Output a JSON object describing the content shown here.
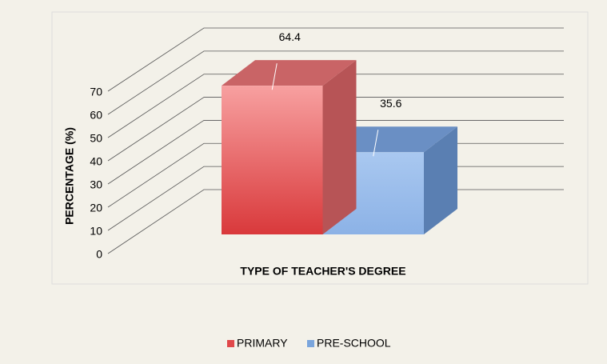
{
  "chart_data": {
    "type": "bar3d",
    "xlabel": "TYPE OF TEACHER'S DEGREE",
    "ylabel": "PERCENTAGE (%)",
    "series": [
      {
        "name": "PRIMARY",
        "color": "#e0484a",
        "values": [
          64.4
        ]
      },
      {
        "name": "PRE-SCHOOL",
        "color": "#7aa5dc",
        "values": [
          35.6
        ]
      }
    ],
    "ylim": [
      0,
      70
    ],
    "yticks": [
      0,
      10,
      20,
      30,
      40,
      50,
      60,
      70
    ],
    "grid": true,
    "legend": "bottom"
  }
}
